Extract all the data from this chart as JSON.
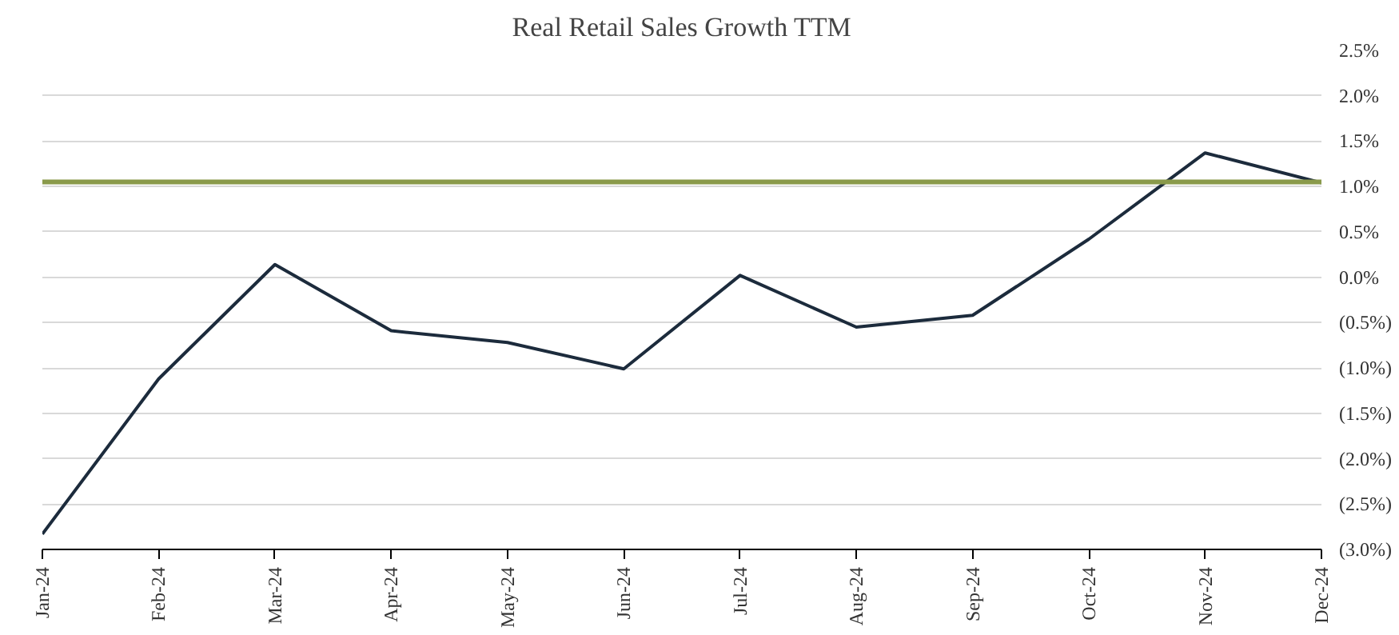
{
  "chart_data": {
    "type": "line",
    "title": "Real Retail Sales Growth TTM",
    "categories": [
      "Jan-24",
      "Feb-24",
      "Mar-24",
      "Apr-24",
      "May-24",
      "Jun-24",
      "Jul-24",
      "Aug-24",
      "Sep-24",
      "Oct-24",
      "Nov-24",
      "Dec-24"
    ],
    "series": [
      {
        "color": "#1c2b3c",
        "values": [
          -2.83,
          -1.12,
          0.14,
          -0.59,
          -0.72,
          -1.01,
          0.02,
          -0.55,
          -0.42,
          0.42,
          1.37,
          1.04
        ]
      }
    ],
    "ylim": [
      -3.0,
      2.5
    ],
    "yticks": [
      {
        "value": -3.0,
        "label": "(3.0%)"
      },
      {
        "value": -2.5,
        "label": "(2.5%)"
      },
      {
        "value": -2.0,
        "label": "(2.0%)"
      },
      {
        "value": -1.5,
        "label": "(1.5%)"
      },
      {
        "value": -1.0,
        "label": "(1.0%)"
      },
      {
        "value": -0.5,
        "label": "(0.5%)"
      },
      {
        "value": 0.0,
        "label": "0.0%"
      },
      {
        "value": 0.5,
        "label": "0.5%"
      },
      {
        "value": 1.0,
        "label": "1.0%"
      },
      {
        "value": 1.5,
        "label": "1.5%"
      },
      {
        "value": 2.0,
        "label": "2.0%"
      },
      {
        "value": 2.5,
        "label": "2.5%"
      }
    ],
    "ref_lines": [
      {
        "axis": "y",
        "value": 1.05,
        "color": "#8a9a4b"
      }
    ],
    "grid": "y",
    "marker": "none",
    "line_style": "solid"
  }
}
